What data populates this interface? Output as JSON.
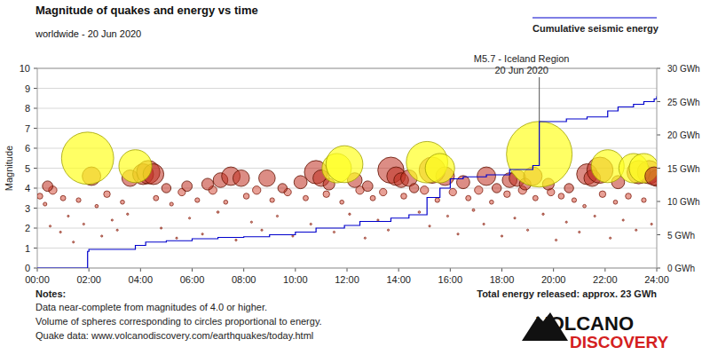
{
  "chart_data": {
    "type": "scatter",
    "title": "Magnitude of quakes and energy vs time",
    "subtitle": "worldwide - 20 Jun 2020",
    "y_label": "Magnitude",
    "xlim": [
      0,
      24
    ],
    "xticks": [
      {
        "value": 0,
        "label": "00:00"
      },
      {
        "value": 2,
        "label": "02:00"
      },
      {
        "value": 4,
        "label": "04:00"
      },
      {
        "value": 6,
        "label": "06:00"
      },
      {
        "value": 8,
        "label": "08:00"
      },
      {
        "value": 10,
        "label": "10:00"
      },
      {
        "value": 12,
        "label": "12:00"
      },
      {
        "value": 14,
        "label": "14:00"
      },
      {
        "value": 16,
        "label": "16:00"
      },
      {
        "value": 18,
        "label": "18:00"
      },
      {
        "value": 20,
        "label": "20:00"
      },
      {
        "value": 22,
        "label": "22:00"
      },
      {
        "value": 24,
        "label": "24:00"
      }
    ],
    "ylim": [
      0,
      10
    ],
    "yticks": [
      0,
      1,
      2,
      3,
      4,
      5,
      6,
      7,
      8,
      9,
      10
    ],
    "y2lim": [
      0,
      30
    ],
    "y2ticks": [
      {
        "value": 0,
        "label": "0 GWh"
      },
      {
        "value": 5,
        "label": "5 GWh"
      },
      {
        "value": 10,
        "label": "10 GWh"
      },
      {
        "value": 15,
        "label": "15 GWh"
      },
      {
        "value": 20,
        "label": "20 GWh"
      },
      {
        "value": 25,
        "label": "25 GWh"
      },
      {
        "value": 30,
        "label": "30 GWh"
      }
    ],
    "grid": true,
    "legend": "upper right",
    "series": [
      {
        "type": "scatter",
        "marker": "bubble",
        "x": [
          0.1,
          0.3,
          0.5,
          0.6,
          0.9,
          1.0,
          1.2,
          1.4,
          1.6,
          1.8,
          2.3,
          2.5,
          2.7,
          2.9,
          3.1,
          3.3,
          3.5,
          4.6,
          4.8,
          5.2,
          5.4,
          5.6,
          5.9,
          6.2,
          6.4,
          6.8,
          7.0,
          7.3,
          7.7,
          8.1,
          8.3,
          8.5,
          8.7,
          9.1,
          9.3,
          9.7,
          9.9,
          10.4,
          10.6,
          11.2,
          11.5,
          11.8,
          12.1,
          12.5,
          12.7,
          13.0,
          13.2,
          13.4,
          13.6,
          14.2,
          14.8,
          15.0,
          15.2,
          15.5,
          15.9,
          16.1,
          16.3,
          16.7,
          16.9,
          17.1,
          17.3,
          17.6,
          18.0,
          18.2,
          18.5,
          18.8,
          19.0,
          19.3,
          19.6,
          19.9,
          20.1,
          20.3,
          20.5,
          20.8,
          21.0,
          21.2,
          21.6,
          21.9,
          22.2,
          22.4,
          22.7,
          22.9,
          23.2,
          23.5,
          23.8,
          2.1,
          3.6,
          4.1,
          4.3,
          4.5,
          0.4,
          5.0,
          5.8,
          6.6,
          7.1,
          7.5,
          7.9,
          8.9,
          9.5,
          10.2,
          10.8,
          11.0,
          11.3,
          12.3,
          12.8,
          13.7,
          13.9,
          14.1,
          14.4,
          14.6,
          15.3,
          15.8,
          16.5,
          17.4,
          17.8,
          18.3,
          18.6,
          18.9,
          19.2,
          19.8,
          20.6,
          21.3,
          21.5,
          22.5,
          23.3,
          23.7,
          24.0,
          1.95,
          3.8,
          11.6,
          11.9,
          15.1,
          15.6,
          19.45,
          21.8,
          22.1,
          23.1,
          23.5,
          23.9
        ],
        "values": [
          3.6,
          3.2,
          2.1,
          3.9,
          1.8,
          3.5,
          2.6,
          1.3,
          3.4,
          2.2,
          3.1,
          1.6,
          3.7,
          2.4,
          1.9,
          3.3,
          2.7,
          3.5,
          2.0,
          3.2,
          1.5,
          3.8,
          2.5,
          3.4,
          1.7,
          3.9,
          2.8,
          3.3,
          1.4,
          3.6,
          2.3,
          3.9,
          1.9,
          3.4,
          2.6,
          3.8,
          1.6,
          3.5,
          2.2,
          3.7,
          1.8,
          3.3,
          2.7,
          3.9,
          1.5,
          3.5,
          2.4,
          3.8,
          1.9,
          3.6,
          2.8,
          3.9,
          2.1,
          3.4,
          2.6,
          3.8,
          1.7,
          3.5,
          2.9,
          3.9,
          2.2,
          3.3,
          1.6,
          3.7,
          2.5,
          3.9,
          1.9,
          3.5,
          2.7,
          3.8,
          1.4,
          3.6,
          2.3,
          3.4,
          1.8,
          3.1,
          2.6,
          3.7,
          1.5,
          3.3,
          2.4,
          3.6,
          1.9,
          3.4,
          2.2,
          4.6,
          4.5,
          4.7,
          4.8,
          4.7,
          4.1,
          4.0,
          4.1,
          4.2,
          4.4,
          4.6,
          4.5,
          4.5,
          4.0,
          4.3,
          4.8,
          4.5,
          4.2,
          4.4,
          4.1,
          4.9,
          4.6,
          4.4,
          4.5,
          4.0,
          4.9,
          4.6,
          4.3,
          4.6,
          4.0,
          4.4,
          4.5,
          4.2,
          4.6,
          4.2,
          4.0,
          4.7,
          4.5,
          4.3,
          4.8,
          4.8,
          4.5,
          5.5,
          5.1,
          5.0,
          5.2,
          5.3,
          5.0,
          5.7,
          4.9,
          5.1,
          5.0,
          5.0,
          4.6
        ]
      },
      {
        "name": "Cumulative seismic energy",
        "type": "line",
        "line_style": "step",
        "color": "#0000cc",
        "axis": "y2",
        "x": [
          0,
          1.95,
          2.0,
          3.8,
          4.2,
          5.0,
          6.0,
          7.0,
          8.0,
          9.0,
          10.0,
          10.8,
          11.9,
          12.5,
          13.7,
          14.4,
          15.1,
          15.6,
          16.0,
          16.5,
          17.4,
          18.3,
          19.2,
          19.45,
          20.5,
          21.3,
          22.1,
          22.5,
          23.1,
          23.5,
          23.9,
          24
        ],
        "values": [
          0,
          2.5,
          2.8,
          3.4,
          3.9,
          4.1,
          4.4,
          4.6,
          4.7,
          5.0,
          5.4,
          6.0,
          6.4,
          7.0,
          7.5,
          8.0,
          10.6,
          12.0,
          13.4,
          13.7,
          14.0,
          14.8,
          15.4,
          22.0,
          22.4,
          22.7,
          23.6,
          24.2,
          24.6,
          25.0,
          25.4,
          25.8
        ]
      }
    ],
    "annotations": [
      {
        "text": [
          "M5.7 - Iceland Region",
          "20 Jun 2020"
        ],
        "x": 19.45,
        "y": 5.7
      }
    ],
    "notes_title": "Notes:",
    "notes": [
      "Data near-complete from magnitudes of 4.0 or higher.",
      "Volume of spheres corresponding to circles proportional to energy.",
      "Quake data: www.volcanodiscovery.com/earthquakes/today.html"
    ],
    "total_energy": "Total energy released: approx. 23 GWh",
    "logo": [
      "VOLCANO",
      "DISCOVERY"
    ]
  }
}
